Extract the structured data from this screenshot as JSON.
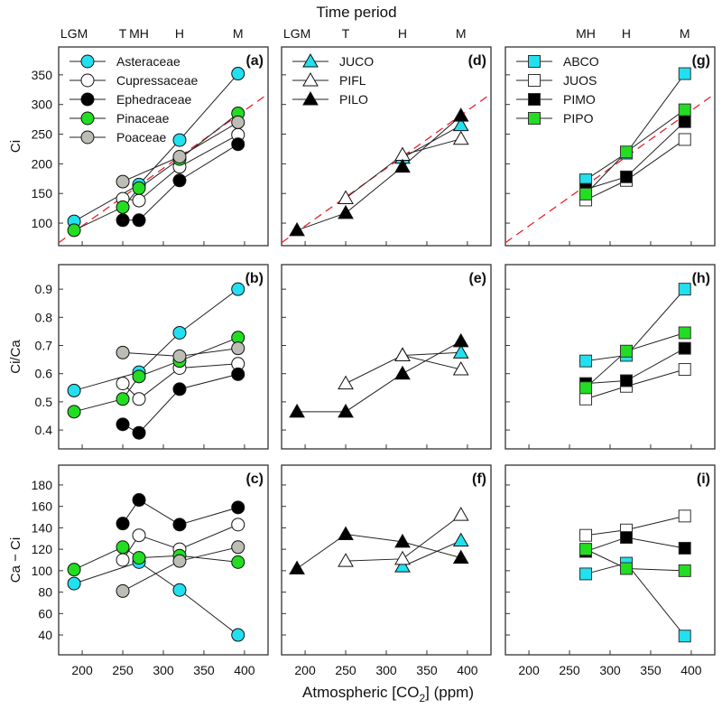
{
  "chart_data": {
    "type": "line",
    "top_title": "Time period",
    "xlabel": "Atmospheric [CO2] (ppm)",
    "xlabel_main": "Atmospheric [CO",
    "xlabel_sub": "2",
    "xlabel_tail": "] (ppm)",
    "xlim": [
      171,
      429
    ],
    "xticks": [
      200,
      250,
      300,
      350,
      400
    ],
    "reference_line": {
      "color": "#e8242c",
      "from": [
        171,
        67
      ],
      "to": [
        429,
        318
      ]
    },
    "rows": [
      {
        "ylabel_main": "C",
        "ylabel_sub": "i",
        "ylabel_full": "Ci",
        "ylim": [
          62,
          397
        ],
        "yticks": [
          100,
          150,
          200,
          250,
          300,
          350
        ]
      },
      {
        "ylabel_full": "Ci/Ca",
        "ylim": [
          0.333,
          0.987
        ],
        "yticks": [
          0.4,
          0.5,
          0.6,
          0.7,
          0.8,
          0.9
        ]
      },
      {
        "ylabel_full": "Ca − Ci",
        "ylim": [
          21.5,
          198.5
        ],
        "yticks": [
          40,
          60,
          80,
          100,
          120,
          140,
          160,
          180
        ]
      }
    ],
    "columns": [
      {
        "periods": [
          {
            "label": "LGM",
            "x": 190
          },
          {
            "label": "T",
            "x": 250
          },
          {
            "label": "MH",
            "x": 270
          },
          {
            "label": "H",
            "x": 320
          },
          {
            "label": "M",
            "x": 392
          }
        ],
        "marker": "circle",
        "series": [
          {
            "name": "Asteraceae",
            "fill": "#22e0f0",
            "x": [
              190,
              270,
              320,
              392
            ],
            "rows": [
              [
                103,
                165,
                240,
                352
              ],
              [
                0.54,
                0.605,
                0.745,
                0.9
              ],
              [
                88,
                108,
                82,
                40
              ]
            ]
          },
          {
            "name": "Cupressaceae",
            "fill": "#ffffff",
            "x": [
              250,
              270,
              320,
              392
            ],
            "rows": [
              [
                141,
                138,
                195,
                249
              ],
              [
                0.565,
                0.51,
                0.62,
                0.635
              ],
              [
                110,
                133,
                120,
                143
              ]
            ]
          },
          {
            "name": "Ephedraceae",
            "fill": "#000000",
            "x": [
              250,
              270,
              320,
              392
            ],
            "rows": [
              [
                105,
                105,
                172,
                233
              ],
              [
                0.42,
                0.39,
                0.545,
                0.598
              ],
              [
                144,
                166,
                143,
                159
              ]
            ]
          },
          {
            "name": "Pinaceae",
            "fill": "#22dd22",
            "x": [
              190,
              250,
              270,
              320,
              392
            ],
            "rows": [
              [
                88,
                127,
                159,
                208,
                285
              ],
              [
                0.465,
                0.51,
                0.59,
                0.645,
                0.728
              ],
              [
                101,
                122,
                112,
                114,
                108
              ]
            ]
          },
          {
            "name": "Poaceae",
            "fill": "#bdbdb5",
            "x": [
              250,
              320,
              392
            ],
            "rows": [
              [
                170,
                212,
                270
              ],
              [
                0.675,
                0.662,
                0.69
              ],
              [
                81,
                109,
                122
              ]
            ]
          }
        ],
        "panel_labels": [
          "(a)",
          "(b)",
          "(c)"
        ]
      },
      {
        "periods": [
          {
            "label": "LGM",
            "x": 190
          },
          {
            "label": "T",
            "x": 250
          },
          {
            "label": "H",
            "x": 320
          },
          {
            "label": "M",
            "x": 392
          }
        ],
        "marker": "triangle",
        "series": [
          {
            "name": "JUCO",
            "fill": "#22e0f0",
            "x": [
              320,
              392
            ],
            "rows": [
              [
                210,
                265
              ],
              [
                0.665,
                0.675
              ],
              [
                104,
                128
              ]
            ]
          },
          {
            "name": "PIFL",
            "fill": "#ffffff",
            "x": [
              250,
              320,
              392
            ],
            "rows": [
              [
                142,
                215,
                242
              ],
              [
                0.565,
                0.665,
                0.615
              ],
              [
                109,
                111,
                152
              ]
            ]
          },
          {
            "name": "PILO",
            "fill": "#000000",
            "x": [
              190,
              250,
              320,
              392
            ],
            "rows": [
              [
                88,
                117,
                195,
                281
              ],
              [
                0.465,
                0.465,
                0.6,
                0.715
              ],
              [
                102,
                134,
                127,
                112
              ]
            ]
          }
        ],
        "panel_labels": [
          "(d)",
          "(e)",
          "(f)"
        ]
      },
      {
        "periods": [
          {
            "label": "MH",
            "x": 270
          },
          {
            "label": "H",
            "x": 320
          },
          {
            "label": "M",
            "x": 392
          }
        ],
        "marker": "square",
        "series": [
          {
            "name": "ABCO",
            "fill": "#22e0f0",
            "x": [
              270,
              320,
              392
            ],
            "rows": [
              [
                173,
                218,
                352
              ],
              [
                0.645,
                0.665,
                0.9
              ],
              [
                97,
                107,
                39
              ]
            ]
          },
          {
            "name": "JUOS",
            "fill": "#ffffff",
            "x": [
              270,
              320,
              392
            ],
            "rows": [
              [
                139,
                172,
                241
              ],
              [
                0.51,
                0.555,
                0.615
              ],
              [
                133,
                138,
                151
              ]
            ]
          },
          {
            "name": "PIMO",
            "fill": "#000000",
            "x": [
              270,
              320,
              392
            ],
            "rows": [
              [
                157,
                178,
                271
              ],
              [
                0.565,
                0.575,
                0.69
              ],
              [
                118,
                131,
                121
              ]
            ]
          },
          {
            "name": "PIPO",
            "fill": "#22dd22",
            "x": [
              270,
              320,
              392
            ],
            "rows": [
              [
                149,
                220,
                291
              ],
              [
                0.55,
                0.68,
                0.745
              ],
              [
                120,
                102,
                100
              ]
            ]
          }
        ],
        "panel_labels": [
          "(g)",
          "(h)",
          "(i)"
        ]
      }
    ]
  }
}
